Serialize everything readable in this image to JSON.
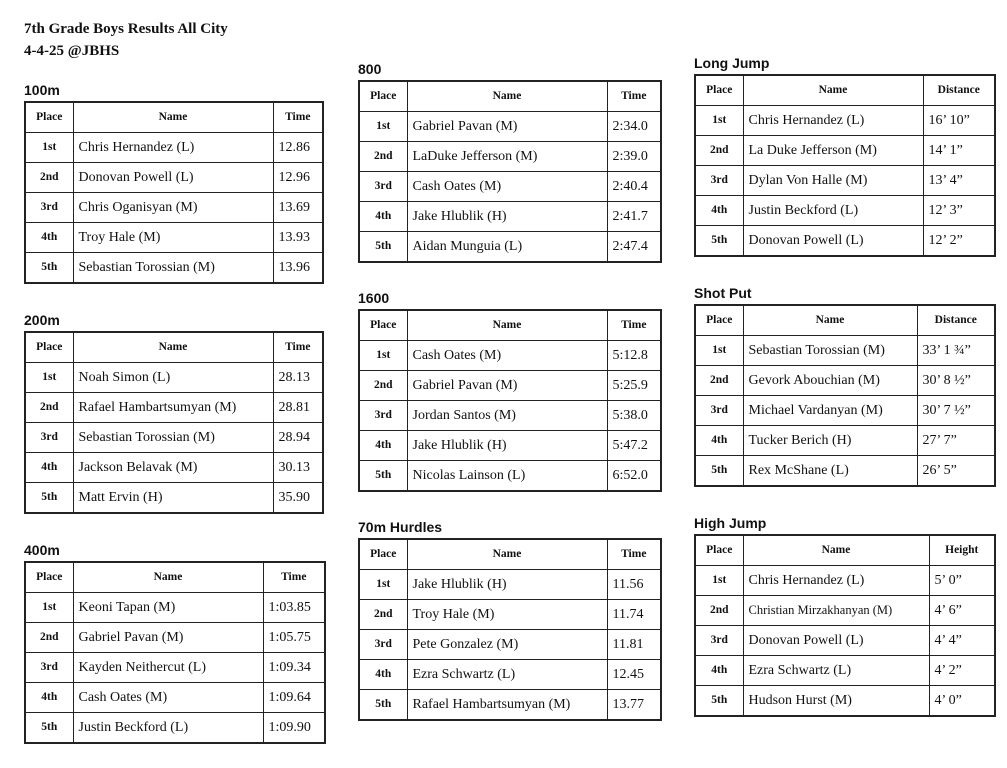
{
  "title": {
    "line1": "7th Grade Boys Results All City",
    "line2": "4-4-25 @JBHS"
  },
  "events": [
    {
      "id": "100m",
      "name": "100m",
      "headers": [
        "Place",
        "Name",
        "Time"
      ],
      "rows": [
        [
          "1st",
          "Chris Hernandez (L)",
          "12.86"
        ],
        [
          "2nd",
          "Donovan Powell (L)",
          "12.96"
        ],
        [
          "3rd",
          "Chris Oganisyan (M)",
          "13.69"
        ],
        [
          "4th",
          "Troy Hale (M)",
          "13.93"
        ],
        [
          "5th",
          "Sebastian Torossian (M)",
          "13.96"
        ]
      ]
    },
    {
      "id": "200m",
      "name": "200m",
      "headers": [
        "Place",
        "Name",
        "Time"
      ],
      "rows": [
        [
          "1st",
          "Noah Simon (L)",
          "28.13"
        ],
        [
          "2nd",
          "Rafael Hambartsumyan (M)",
          "28.81"
        ],
        [
          "3rd",
          "Sebastian Torossian (M)",
          "28.94"
        ],
        [
          "4th",
          "Jackson Belavak (M)",
          "30.13"
        ],
        [
          "5th",
          "Matt Ervin (H)",
          "35.90"
        ]
      ]
    },
    {
      "id": "400m",
      "name": "400m",
      "headers": [
        "Place",
        "Name",
        "Time"
      ],
      "rows": [
        [
          "1st",
          "Keoni Tapan (M)",
          "1:03.85"
        ],
        [
          "2nd",
          "Gabriel Pavan (M)",
          "1:05.75"
        ],
        [
          "3rd",
          "Kayden Neithercut (L)",
          "1:09.34"
        ],
        [
          "4th",
          "Cash Oates (M)",
          "1:09.64"
        ],
        [
          "5th",
          "Justin Beckford (L)",
          "1:09.90"
        ]
      ]
    },
    {
      "id": "800",
      "name": "800",
      "headers": [
        "Place",
        "Name",
        "Time"
      ],
      "rows": [
        [
          "1st",
          "Gabriel Pavan (M)",
          "2:34.0"
        ],
        [
          "2nd",
          "LaDuke Jefferson (M)",
          "2:39.0"
        ],
        [
          "3rd",
          "Cash Oates (M)",
          "2:40.4"
        ],
        [
          "4th",
          "Jake Hlublik (H)",
          "2:41.7"
        ],
        [
          "5th",
          "Aidan Munguia (L)",
          "2:47.4"
        ]
      ]
    },
    {
      "id": "1600",
      "name": "1600",
      "headers": [
        "Place",
        "Name",
        "Time"
      ],
      "rows": [
        [
          "1st",
          "Cash Oates (M)",
          "5:12.8"
        ],
        [
          "2nd",
          "Gabriel Pavan (M)",
          "5:25.9"
        ],
        [
          "3rd",
          "Jordan Santos (M)",
          "5:38.0"
        ],
        [
          "4th",
          "Jake Hlublik (H)",
          "5:47.2"
        ],
        [
          "5th",
          "Nicolas Lainson (L)",
          "6:52.0"
        ]
      ]
    },
    {
      "id": "70m-hurdles",
      "name": "70m Hurdles",
      "headers": [
        "Place",
        "Name",
        "Time"
      ],
      "rows": [
        [
          "1st",
          "Jake Hlublik (H)",
          "11.56"
        ],
        [
          "2nd",
          "Troy Hale (M)",
          "11.74"
        ],
        [
          "3rd",
          "Pete Gonzalez (M)",
          "11.81"
        ],
        [
          "4th",
          "Ezra Schwartz (L)",
          "12.45"
        ],
        [
          "5th",
          "Rafael Hambartsumyan (M)",
          "13.77"
        ]
      ]
    },
    {
      "id": "long-jump",
      "name": "Long Jump",
      "headers": [
        "Place",
        "Name",
        "Distance"
      ],
      "rows": [
        [
          "1st",
          "Chris Hernandez (L)",
          "16’ 10”"
        ],
        [
          "2nd",
          "La Duke Jefferson (M)",
          "14’ 1”"
        ],
        [
          "3rd",
          "Dylan Von Halle (M)",
          "13’ 4”"
        ],
        [
          "4th",
          "Justin Beckford (L)",
          "12’ 3”"
        ],
        [
          "5th",
          "Donovan Powell (L)",
          "12’ 2”"
        ]
      ]
    },
    {
      "id": "shot-put",
      "name": "Shot Put",
      "headers": [
        "Place",
        "Name",
        "Distance"
      ],
      "rows": [
        [
          "1st",
          "Sebastian Torossian (M)",
          "33’ 1 ¾”"
        ],
        [
          "2nd",
          "Gevork Abouchian (M)",
          "30’ 8 ½”"
        ],
        [
          "3rd",
          "Michael Vardanyan (M)",
          "30’ 7 ½”"
        ],
        [
          "4th",
          "Tucker Berich (H)",
          "27’ 7”"
        ],
        [
          "5th",
          "Rex McShane (L)",
          "26’ 5”"
        ]
      ]
    },
    {
      "id": "high-jump",
      "name": "High Jump",
      "headers": [
        "Place",
        "Name",
        "Height"
      ],
      "rows": [
        [
          "1st",
          "Chris Hernandez (L)",
          "5’ 0”"
        ],
        [
          "2nd",
          "Christian Mirzakhanyan (M)",
          "4’ 6”"
        ],
        [
          "3rd",
          "Donovan Powell (L)",
          "4’ 4”"
        ],
        [
          "4th",
          "Ezra Schwartz (L)",
          "4’ 2”"
        ],
        [
          "5th",
          "Hudson Hurst (M)",
          "4’ 0”"
        ]
      ]
    }
  ]
}
